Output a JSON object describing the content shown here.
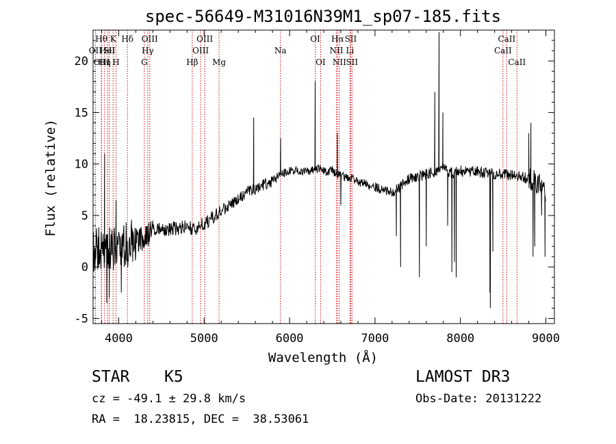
{
  "chart_data": {
    "type": "line",
    "title": "spec-56649-M31016N39M1_sp07-185.fits",
    "xlabel": "Wavelength (Å)",
    "ylabel": "Flux (relative)",
    "xlim": [
      3700,
      9100
    ],
    "ylim": [
      -5.5,
      23
    ],
    "x_ticks": [
      4000,
      5000,
      6000,
      7000,
      8000,
      9000
    ],
    "y_ticks": [
      -5,
      0,
      5,
      10,
      15,
      20
    ],
    "line_color": "#000000",
    "marker_color": "#cc0000",
    "continuum": [
      [
        3700,
        1.5
      ],
      [
        3800,
        2.0
      ],
      [
        3900,
        1.8
      ],
      [
        4000,
        1.6
      ],
      [
        4100,
        2.2
      ],
      [
        4200,
        2.6
      ],
      [
        4300,
        2.8
      ],
      [
        4400,
        3.6
      ],
      [
        4500,
        3.8
      ],
      [
        4600,
        3.6
      ],
      [
        4700,
        3.8
      ],
      [
        4800,
        3.9
      ],
      [
        4900,
        3.7
      ],
      [
        5000,
        4.2
      ],
      [
        5100,
        4.8
      ],
      [
        5200,
        5.5
      ],
      [
        5300,
        6.0
      ],
      [
        5400,
        6.6
      ],
      [
        5500,
        7.3
      ],
      [
        5600,
        7.6
      ],
      [
        5700,
        8.0
      ],
      [
        5800,
        8.3
      ],
      [
        5900,
        9.0
      ],
      [
        6000,
        9.3
      ],
      [
        6100,
        9.4
      ],
      [
        6200,
        9.3
      ],
      [
        6300,
        9.6
      ],
      [
        6400,
        9.3
      ],
      [
        6500,
        9.4
      ],
      [
        6600,
        8.8
      ],
      [
        6700,
        8.7
      ],
      [
        6800,
        8.3
      ],
      [
        6900,
        8.0
      ],
      [
        7000,
        7.8
      ],
      [
        7100,
        7.4
      ],
      [
        7200,
        7.3
      ],
      [
        7300,
        7.8
      ],
      [
        7400,
        8.6
      ],
      [
        7500,
        8.8
      ],
      [
        7600,
        9.0
      ],
      [
        7700,
        9.3
      ],
      [
        7800,
        9.6
      ],
      [
        7900,
        9.1
      ],
      [
        8000,
        9.3
      ],
      [
        8100,
        9.2
      ],
      [
        8200,
        9.3
      ],
      [
        8300,
        9.1
      ],
      [
        8400,
        9.0
      ],
      [
        8500,
        9.0
      ],
      [
        8600,
        8.9
      ],
      [
        8700,
        8.8
      ],
      [
        8800,
        8.6
      ],
      [
        8900,
        8.2
      ],
      [
        9000,
        7.0
      ],
      [
        9100,
        6.5
      ]
    ],
    "features": [
      [
        3835,
        11.0
      ],
      [
        3860,
        -3.5
      ],
      [
        3890,
        -3.0
      ],
      [
        3970,
        6.5
      ],
      [
        4030,
        -2.5
      ],
      [
        5580,
        14.5
      ],
      [
        5895,
        12.5
      ],
      [
        6300,
        18.0
      ],
      [
        6560,
        13.0
      ],
      [
        6600,
        6.0
      ],
      [
        7250,
        3.0
      ],
      [
        7300,
        0.0
      ],
      [
        7520,
        -1.0
      ],
      [
        7600,
        2.0
      ],
      [
        7700,
        17.0
      ],
      [
        7750,
        22.8
      ],
      [
        7795,
        15.0
      ],
      [
        7850,
        4.0
      ],
      [
        7900,
        -0.5
      ],
      [
        7930,
        0.5
      ],
      [
        7950,
        -1.0
      ],
      [
        8345,
        -2.5
      ],
      [
        8350,
        -4.0
      ],
      [
        8380,
        1.5
      ],
      [
        8800,
        13.0
      ],
      [
        8825,
        14.0
      ],
      [
        8850,
        1.0
      ],
      [
        8870,
        2.0
      ],
      [
        8950,
        5.0
      ],
      [
        8990,
        1.0
      ]
    ],
    "lines": [
      {
        "wl": 3727,
        "label": "OII",
        "row": 1
      },
      {
        "wl": 3797,
        "label": "Hθ",
        "row": 0
      },
      {
        "wl": 3800,
        "label": "OIII",
        "row": 2
      },
      {
        "wl": 3835,
        "label": "Hη",
        "row": 2
      },
      {
        "wl": 3869,
        "label": "HeI",
        "row": 1
      },
      {
        "wl": 3889,
        "label": "SII",
        "row": 1
      },
      {
        "wl": 3934,
        "label": "K",
        "row": 0
      },
      {
        "wl": 3968,
        "label": "H",
        "row": 2
      },
      {
        "wl": 4102,
        "label": "Hδ",
        "row": 0
      },
      {
        "wl": 4300,
        "label": "G",
        "row": 2
      },
      {
        "wl": 4340,
        "label": "Hγ",
        "row": 1
      },
      {
        "wl": 4363,
        "label": "OIII",
        "row": 0
      },
      {
        "wl": 4861,
        "label": "Hβ",
        "row": 2
      },
      {
        "wl": 4959,
        "label": "OIII",
        "row": 1
      },
      {
        "wl": 5007,
        "label": "OIII",
        "row": 0
      },
      {
        "wl": 5175,
        "label": "Mg",
        "row": 2
      },
      {
        "wl": 5893,
        "label": "Na",
        "row": 1
      },
      {
        "wl": 6300,
        "label": "OI",
        "row": 0
      },
      {
        "wl": 6363,
        "label": "OI",
        "row": 2
      },
      {
        "wl": 6548,
        "label": "NII",
        "row": 1
      },
      {
        "wl": 6563,
        "label": "Hα",
        "row": 0
      },
      {
        "wl": 6583,
        "label": "NII",
        "row": 2
      },
      {
        "wl": 6707,
        "label": "Li",
        "row": 1
      },
      {
        "wl": 6716,
        "label": "SII",
        "row": 0
      },
      {
        "wl": 6731,
        "label": "SII",
        "row": 2
      },
      {
        "wl": 8498,
        "label": "CaII",
        "row": 1
      },
      {
        "wl": 8542,
        "label": "CaII",
        "row": 0
      },
      {
        "wl": 8662,
        "label": "CaII",
        "row": 2
      }
    ]
  },
  "info": {
    "class_label": "STAR",
    "subclass": "K5",
    "survey": "LAMOST DR3",
    "redshift_line": "cz = -49.1 ± 29.8 km/s",
    "obs_date": "Obs-Date: 20131222",
    "coords": "RA =  18.23815, DEC =  38.53061"
  }
}
